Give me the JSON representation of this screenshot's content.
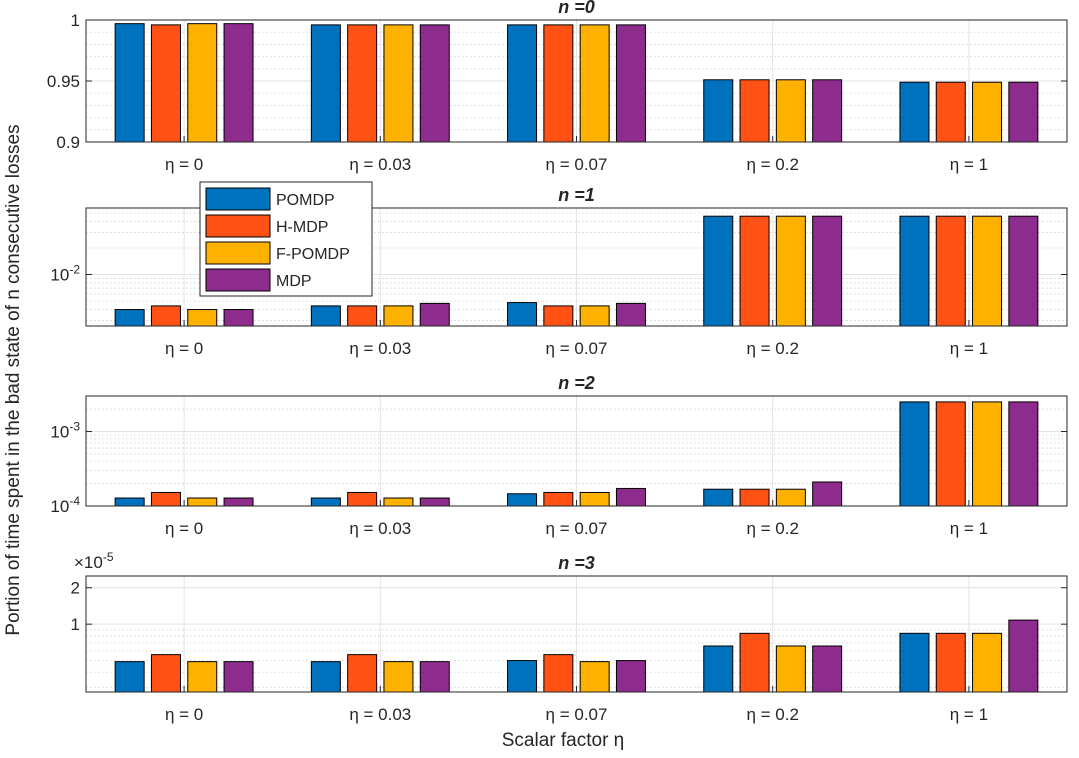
{
  "colors": {
    "POMDP": "#0072BD",
    "H-MDP": "#FF5214",
    "F-POMDP": "#FFB100",
    "MDP": "#8E2C8E"
  },
  "legend": [
    "POMDP",
    "H-MDP",
    "F-POMDP",
    "MDP"
  ],
  "ylabel": "Portion of time spent in the bad state of  n consecutive losses",
  "xlabel": "Scalar factor η",
  "chart_data": [
    {
      "type": "bar",
      "title": "n =0",
      "yscale": "linear",
      "ylim": [
        0.9,
        1.0
      ],
      "yticks": [
        {
          "v": 0.9,
          "label": "0.9"
        },
        {
          "v": 0.95,
          "label": "0.95"
        },
        {
          "v": 1.0,
          "label": "1"
        }
      ],
      "categories": [
        "η = 0",
        "η = 0.03",
        "η = 0.07",
        "η = 0.2",
        "η = 1"
      ],
      "series": [
        {
          "name": "POMDP",
          "values": [
            0.997,
            0.996,
            0.996,
            0.951,
            0.949
          ]
        },
        {
          "name": "H-MDP",
          "values": [
            0.996,
            0.996,
            0.996,
            0.951,
            0.949
          ]
        },
        {
          "name": "F-POMDP",
          "values": [
            0.997,
            0.996,
            0.996,
            0.951,
            0.949
          ]
        },
        {
          "name": "MDP",
          "values": [
            0.997,
            0.996,
            0.996,
            0.951,
            0.949
          ]
        }
      ]
    },
    {
      "type": "bar",
      "title": "n =1",
      "yscale": "log",
      "ylim": [
        0.0026,
        0.057
      ],
      "yticks": [
        {
          "v": 0.01,
          "label": "10^-2"
        }
      ],
      "categories": [
        "η = 0",
        "η = 0.03",
        "η = 0.07",
        "η = 0.2",
        "η = 1"
      ],
      "series": [
        {
          "name": "POMDP",
          "values": [
            0.004,
            0.0044,
            0.0048,
            0.046,
            0.046
          ]
        },
        {
          "name": "H-MDP",
          "values": [
            0.0044,
            0.0044,
            0.0044,
            0.046,
            0.046
          ]
        },
        {
          "name": "F-POMDP",
          "values": [
            0.004,
            0.0044,
            0.0044,
            0.046,
            0.046
          ]
        },
        {
          "name": "MDP",
          "values": [
            0.004,
            0.0047,
            0.0047,
            0.046,
            0.046
          ]
        }
      ]
    },
    {
      "type": "bar",
      "title": "n =2",
      "yscale": "log",
      "ylim": [
        0.0001,
        0.003
      ],
      "yticks": [
        {
          "v": 0.0001,
          "label": "10^-4"
        },
        {
          "v": 0.001,
          "label": "10^-3"
        }
      ],
      "categories": [
        "η = 0",
        "η = 0.03",
        "η = 0.07",
        "η = 0.2",
        "η = 1"
      ],
      "series": [
        {
          "name": "POMDP",
          "values": [
            0.000128,
            0.000128,
            0.000146,
            0.000168,
            0.0025
          ]
        },
        {
          "name": "H-MDP",
          "values": [
            0.000152,
            0.000152,
            0.000152,
            0.000168,
            0.0025
          ]
        },
        {
          "name": "F-POMDP",
          "values": [
            0.000128,
            0.000128,
            0.000152,
            0.000168,
            0.0025
          ]
        },
        {
          "name": "MDP",
          "values": [
            0.000128,
            0.000128,
            0.000172,
            0.00021,
            0.0025
          ]
        }
      ]
    },
    {
      "type": "bar",
      "title": "n =3",
      "yscale": "log",
      "yfactor": "×10^-5",
      "ylim": [
        2.75e-06,
        2.5e-05
      ],
      "yticks": [
        {
          "v": 1e-05,
          "label": "1"
        },
        {
          "v": 2e-05,
          "label": "2"
        }
      ],
      "categories": [
        "η = 0",
        "η = 0.03",
        "η = 0.07",
        "η = 0.2",
        "η = 1"
      ],
      "series": [
        {
          "name": "POMDP",
          "values": [
            4.9e-06,
            4.9e-06,
            5e-06,
            6.6e-06,
            8.4e-06
          ]
        },
        {
          "name": "H-MDP",
          "values": [
            5.6e-06,
            5.6e-06,
            5.6e-06,
            8.4e-06,
            8.4e-06
          ]
        },
        {
          "name": "F-POMDP",
          "values": [
            4.9e-06,
            4.9e-06,
            4.9e-06,
            6.6e-06,
            8.4e-06
          ]
        },
        {
          "name": "MDP",
          "values": [
            4.9e-06,
            4.9e-06,
            5e-06,
            6.6e-06,
            1.08e-05
          ]
        }
      ]
    }
  ]
}
